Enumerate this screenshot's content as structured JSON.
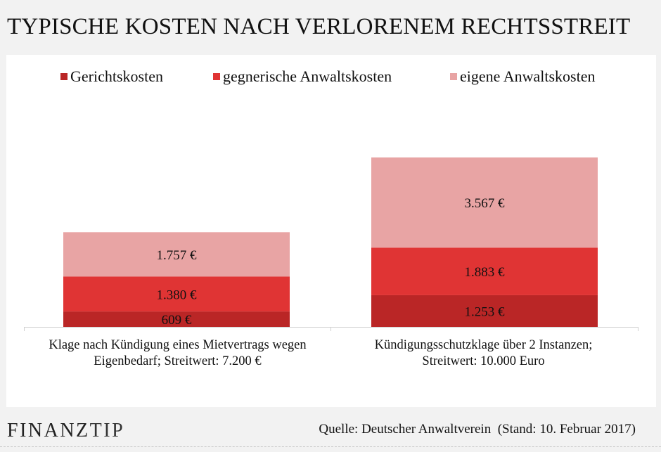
{
  "title": "TYPISCHE KOSTEN NACH VERLORENEM RECHTSSTREIT",
  "brand": {
    "part1": "FINANZ",
    "part2": "TIP"
  },
  "source": "Quelle: Deutscher Anwaltverein  (Stand: 10. Februar 2017)",
  "colors": {
    "gerichtskosten": "#ba2626",
    "gegnerische": "#e03434",
    "eigene": "#e8a4a4",
    "background": "#f2f2f2",
    "panel": "#ffffff"
  },
  "chart_data": {
    "type": "bar",
    "stacked": true,
    "categories": [
      "Klage nach Kündigung eines Mietvertrags wegen Eigenbedarf; Streitwert: 7.200 €",
      "Kündigungsschutzklage über 2 Instanzen; Streitwert: 10.000 Euro"
    ],
    "category_lines": [
      [
        "Klage nach Kündigung eines Mietvertrags wegen",
        "Eigenbedarf; Streitwert: 7.200 €"
      ],
      [
        "Kündigungsschutzklage über 2 Instanzen;",
        "Streitwert: 10.000 Euro"
      ]
    ],
    "series": [
      {
        "name": "Gerichtskosten",
        "values": [
          609,
          1253
        ],
        "labels": [
          "609 €",
          "1.253 €"
        ]
      },
      {
        "name": "gegnerische Anwaltskosten",
        "values": [
          1380,
          1883
        ],
        "labels": [
          "1.380 €",
          "1.883 €"
        ]
      },
      {
        "name": "eigene Anwaltskosten",
        "values": [
          1757,
          3567
        ],
        "labels": [
          "1.757 €",
          "3.567 €"
        ]
      }
    ],
    "legend_position": "top",
    "grid": false,
    "ylim": [
      0,
      7000
    ]
  }
}
